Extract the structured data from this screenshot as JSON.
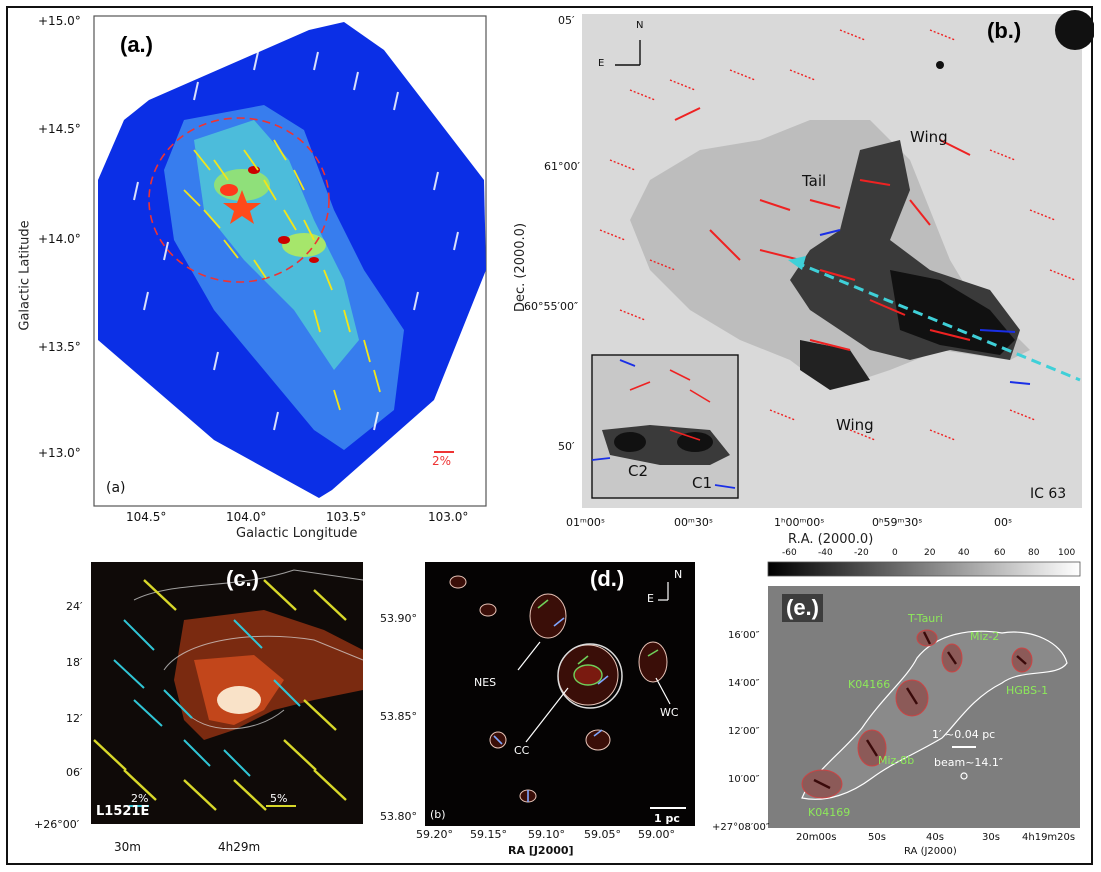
{
  "panels": {
    "a": {
      "tag": "(a.)",
      "inner_tag": "(a)",
      "y_ticks": [
        "+15.0°",
        "+14.5°",
        "+14.0°",
        "+13.5°",
        "+13.0°"
      ],
      "x_ticks": [
        "104.5°",
        "104.0°",
        "103.5°",
        "103.0°"
      ],
      "xlabel": "Galactic Longitude",
      "ylabel": "Galactic Latitude",
      "scale": "2%"
    },
    "b": {
      "tag": "(b.)",
      "compass_n": "N",
      "compass_e": "E",
      "y_ticks": [
        "05′",
        "61°00′",
        "60°55′00″",
        "50′"
      ],
      "x_ticks": [
        "01ᵐ00ˢ",
        "00ᵐ30ˢ",
        "1ʰ00ᵐ00ˢ",
        "0ʰ59ᵐ30ˢ",
        "00ˢ"
      ],
      "xlabel": "R.A. (2000.0)",
      "ylabel": "Dec. (2000.0)",
      "labels": {
        "wing_top": "Wing",
        "tail": "Tail",
        "wing_bottom": "Wing",
        "object": "IC 63",
        "c1": "C1",
        "c2": "C2"
      }
    },
    "c": {
      "tag": "(c.)",
      "y_ticks": [
        "24′",
        "18′",
        "12′",
        "06′",
        "+26°00′"
      ],
      "x_ticks": [
        "30m",
        "4h29m"
      ],
      "object": "L1521E",
      "scale_left": "2%",
      "scale_right": "5%"
    },
    "d": {
      "tag": "(d.)",
      "inner_tag": "(b)",
      "compass_n": "N",
      "compass_e": "E",
      "y_ticks": [
        "53.90°",
        "53.85°",
        "53.80°"
      ],
      "x_ticks": [
        "59.20°",
        "59.15°",
        "59.10°",
        "59.05°",
        "59.00°"
      ],
      "xlabel": "RA [J2000]",
      "labels": {
        "nes": "NES",
        "cc": "CC",
        "wc": "WC"
      },
      "scalebar": "1 pc"
    },
    "e": {
      "tag": "(e.)",
      "colorbar_ticks": [
        "-60",
        "-40",
        "-20",
        "0",
        "20",
        "40",
        "60",
        "80",
        "100"
      ],
      "y_ticks": [
        "16′00″",
        "14′00″",
        "12′00″",
        "10′00″",
        "+27°08′00″"
      ],
      "x_ticks": [
        "20m00s",
        "50s",
        "40s",
        "30s",
        "4h19m20s"
      ],
      "xlabel": "RA (J2000)",
      "labels": {
        "ttauri": "T-Tauri",
        "miz2": "Miz-2",
        "k04166": "K04166",
        "hgbs1": "HGBS-1",
        "miz8b": "Miz-8b",
        "k04169": "K04169"
      },
      "scale_text": "1′ ~0.04 pc",
      "beam_text": "beam~14.1″"
    }
  }
}
